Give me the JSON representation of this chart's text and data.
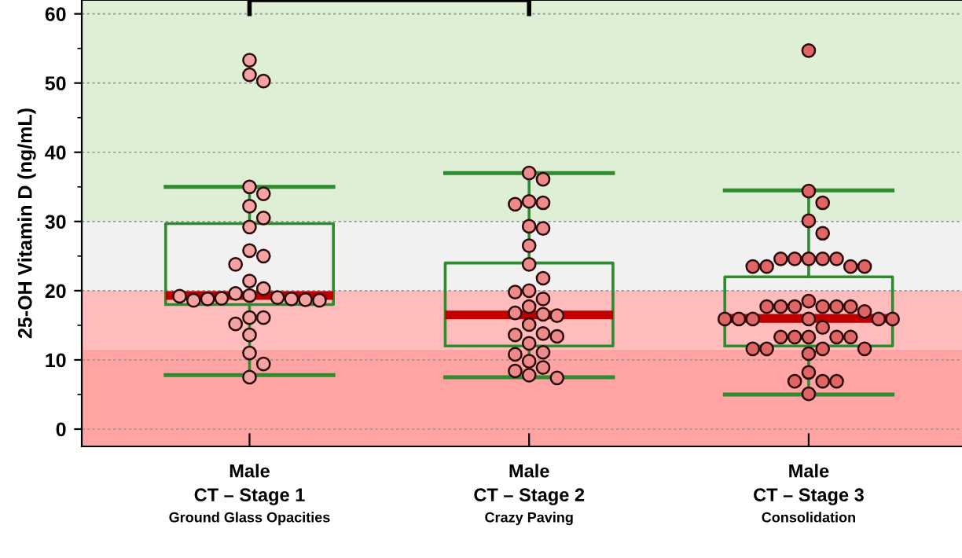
{
  "chart_data": {
    "type": "box",
    "ylabel": "25-OH Vitamin D (ng/mL)",
    "categories": [
      "Male\nCT – Stage 1\nGround Glass Opacities",
      "Male\nCT – Stage 2\nCrazy Paving",
      "Male\nCT – Stage 3\nConsolidation"
    ],
    "boxes": [
      {
        "low": 7.8,
        "q1": 18,
        "median": 19.3,
        "q3": 29.7,
        "high": 35
      },
      {
        "low": 7.5,
        "q1": 12,
        "median": 16.5,
        "q3": 24,
        "high": 37
      },
      {
        "low": 5,
        "q1": 12,
        "median": 16,
        "q3": 22,
        "high": 34.5
      }
    ],
    "color": "#2e8b2e",
    "series": [
      {
        "type": "scatter",
        "color": "#f4a3a3",
        "x": [
          "Male\nCT – Stage 1\nGround Glass Opacities",
          "Male\nCT – Stage 1\nGround Glass Opacities",
          "Male\nCT – Stage 1\nGround Glass Opacities",
          "Male\nCT – Stage 1\nGround Glass Opacities",
          "Male\nCT – Stage 1\nGround Glass Opacities",
          "Male\nCT – Stage 1\nGround Glass Opacities",
          "Male\nCT – Stage 1\nGround Glass Opacities",
          "Male\nCT – Stage 1\nGround Glass Opacities",
          "Male\nCT – Stage 1\nGround Glass Opacities",
          "Male\nCT – Stage 1\nGround Glass Opacities",
          "Male\nCT – Stage 1\nGround Glass Opacities",
          "Male\nCT – Stage 1\nGround Glass Opacities",
          "Male\nCT – Stage 1\nGround Glass Opacities",
          "Male\nCT – Stage 1\nGround Glass Opacities",
          "Male\nCT – Stage 1\nGround Glass Opacities",
          "Male\nCT – Stage 1\nGround Glass Opacities",
          "Male\nCT – Stage 1\nGround Glass Opacities",
          "Male\nCT – Stage 1\nGround Glass Opacities",
          "Male\nCT – Stage 1\nGround Glass Opacities",
          "Male\nCT – Stage 1\nGround Glass Opacities",
          "Male\nCT – Stage 1\nGround Glass Opacities",
          "Male\nCT – Stage 1\nGround Glass Opacities",
          "Male\nCT – Stage 1\nGround Glass Opacities",
          "Male\nCT – Stage 1\nGround Glass Opacities",
          "Male\nCT – Stage 1\nGround Glass Opacities",
          "Male\nCT – Stage 1\nGround Glass Opacities",
          "Male\nCT – Stage 1\nGround Glass Opacities",
          "Male\nCT – Stage 1\nGround Glass Opacities",
          "Male\nCT – Stage 1\nGround Glass Opacities",
          "Male\nCT – Stage 1\nGround Glass Opacities"
        ],
        "values": [
          53.3,
          51.2,
          50.3,
          35,
          34,
          32.2,
          30.5,
          29.2,
          25.8,
          25,
          23.8,
          21.4,
          20.3,
          19.6,
          19.3,
          19,
          18.9,
          18.8,
          18.8,
          18.7,
          18.6,
          18.6,
          19.2,
          16.1,
          16.1,
          15.2,
          13.6,
          11,
          9.4,
          7.5
        ]
      },
      {
        "type": "scatter",
        "color": "#ee8a8a",
        "x": [
          "Male\nCT – Stage 2\nCrazy Paving",
          "Male\nCT – Stage 2\nCrazy Paving",
          "Male\nCT – Stage 2\nCrazy Paving",
          "Male\nCT – Stage 2\nCrazy Paving",
          "Male\nCT – Stage 2\nCrazy Paving",
          "Male\nCT – Stage 2\nCrazy Paving",
          "Male\nCT – Stage 2\nCrazy Paving",
          "Male\nCT – Stage 2\nCrazy Paving",
          "Male\nCT – Stage 2\nCrazy Paving",
          "Male\nCT – Stage 2\nCrazy Paving",
          "Male\nCT – Stage 2\nCrazy Paving",
          "Male\nCT – Stage 2\nCrazy Paving",
          "Male\nCT – Stage 2\nCrazy Paving",
          "Male\nCT – Stage 2\nCrazy Paving",
          "Male\nCT – Stage 2\nCrazy Paving",
          "Male\nCT – Stage 2\nCrazy Paving",
          "Male\nCT – Stage 2\nCrazy Paving",
          "Male\nCT – Stage 2\nCrazy Paving",
          "Male\nCT – Stage 2\nCrazy Paving",
          "Male\nCT – Stage 2\nCrazy Paving",
          "Male\nCT – Stage 2\nCrazy Paving",
          "Male\nCT – Stage 2\nCrazy Paving",
          "Male\nCT – Stage 2\nCrazy Paving",
          "Male\nCT – Stage 2\nCrazy Paving",
          "Male\nCT – Stage 2\nCrazy Paving",
          "Male\nCT – Stage 2\nCrazy Paving",
          "Male\nCT – Stage 2\nCrazy Paving",
          "Male\nCT – Stage 2\nCrazy Paving",
          "Male\nCT – Stage 2\nCrazy Paving"
        ],
        "values": [
          37,
          36.1,
          32.9,
          32.7,
          32.5,
          29.3,
          29,
          26.5,
          23.8,
          21.8,
          20,
          19.8,
          18.8,
          17.7,
          16.8,
          16.6,
          16.4,
          15.1,
          13.8,
          13.6,
          13.4,
          12.4,
          11.1,
          10.8,
          9.8,
          8.9,
          8.4,
          7.8,
          7.4
        ]
      },
      {
        "type": "scatter",
        "color": "#e06666",
        "x": [
          "Male\nCT – Stage 3\nConsolidation",
          "Male\nCT – Stage 3\nConsolidation",
          "Male\nCT – Stage 3\nConsolidation",
          "Male\nCT – Stage 3\nConsolidation",
          "Male\nCT – Stage 3\nConsolidation",
          "Male\nCT – Stage 3\nConsolidation",
          "Male\nCT – Stage 3\nConsolidation",
          "Male\nCT – Stage 3\nConsolidation",
          "Male\nCT – Stage 3\nConsolidation",
          "Male\nCT – Stage 3\nConsolidation",
          "Male\nCT – Stage 3\nConsolidation",
          "Male\nCT – Stage 3\nConsolidation",
          "Male\nCT – Stage 3\nConsolidation",
          "Male\nCT – Stage 3\nConsolidation",
          "Male\nCT – Stage 3\nConsolidation",
          "Male\nCT – Stage 3\nConsolidation",
          "Male\nCT – Stage 3\nConsolidation",
          "Male\nCT – Stage 3\nConsolidation",
          "Male\nCT – Stage 3\nConsolidation",
          "Male\nCT – Stage 3\nConsolidation",
          "Male\nCT – Stage 3\nConsolidation",
          "Male\nCT – Stage 3\nConsolidation",
          "Male\nCT – Stage 3\nConsolidation",
          "Male\nCT – Stage 3\nConsolidation",
          "Male\nCT – Stage 3\nConsolidation",
          "Male\nCT – Stage 3\nConsolidation",
          "Male\nCT – Stage 3\nConsolidation",
          "Male\nCT – Stage 3\nConsolidation",
          "Male\nCT – Stage 3\nConsolidation",
          "Male\nCT – Stage 3\nConsolidation",
          "Male\nCT – Stage 3\nConsolidation",
          "Male\nCT – Stage 3\nConsolidation",
          "Male\nCT – Stage 3\nConsolidation",
          "Male\nCT – Stage 3\nConsolidation",
          "Male\nCT – Stage 3\nConsolidation",
          "Male\nCT – Stage 3\nConsolidation",
          "Male\nCT – Stage 3\nConsolidation",
          "Male\nCT – Stage 3\nConsolidation",
          "Male\nCT – Stage 3\nConsolidation",
          "Male\nCT – Stage 3\nConsolidation",
          "Male\nCT – Stage 3\nConsolidation",
          "Male\nCT – Stage 3\nConsolidation",
          "Male\nCT – Stage 3\nConsolidation",
          "Male\nCT – Stage 3\nConsolidation"
        ],
        "values": [
          54.7,
          34.4,
          32.7,
          30.1,
          28.3,
          24.6,
          24.6,
          24.6,
          24.6,
          24.6,
          23.5,
          23.5,
          23.5,
          23.5,
          18.5,
          17.7,
          17.7,
          17.7,
          17.7,
          17.7,
          17.7,
          17,
          15.9,
          15.9,
          15.9,
          15.9,
          15.9,
          15.9,
          14.7,
          13.3,
          13.3,
          13.3,
          13.3,
          13.3,
          11.6,
          11.6,
          11.6,
          11.6,
          10.9,
          8.2,
          6.9,
          6.9,
          6.9,
          5.1
        ]
      }
    ],
    "bands": [
      {
        "axis": "y",
        "from": -2.5,
        "to": 11.5,
        "color": "#ffa3a3"
      },
      {
        "axis": "y",
        "from": 11.5,
        "to": 20,
        "color": "#ffbcbc"
      },
      {
        "axis": "y",
        "from": 20,
        "to": 30,
        "color": "#f1f1f1"
      },
      {
        "axis": "y",
        "from": 30,
        "to": 62,
        "color": "#dfefd6"
      }
    ],
    "ylim": [
      -2.5,
      62
    ],
    "yticks": [
      0,
      10,
      20,
      30,
      40,
      50,
      60
    ],
    "grid": "y",
    "marker": "circle"
  }
}
